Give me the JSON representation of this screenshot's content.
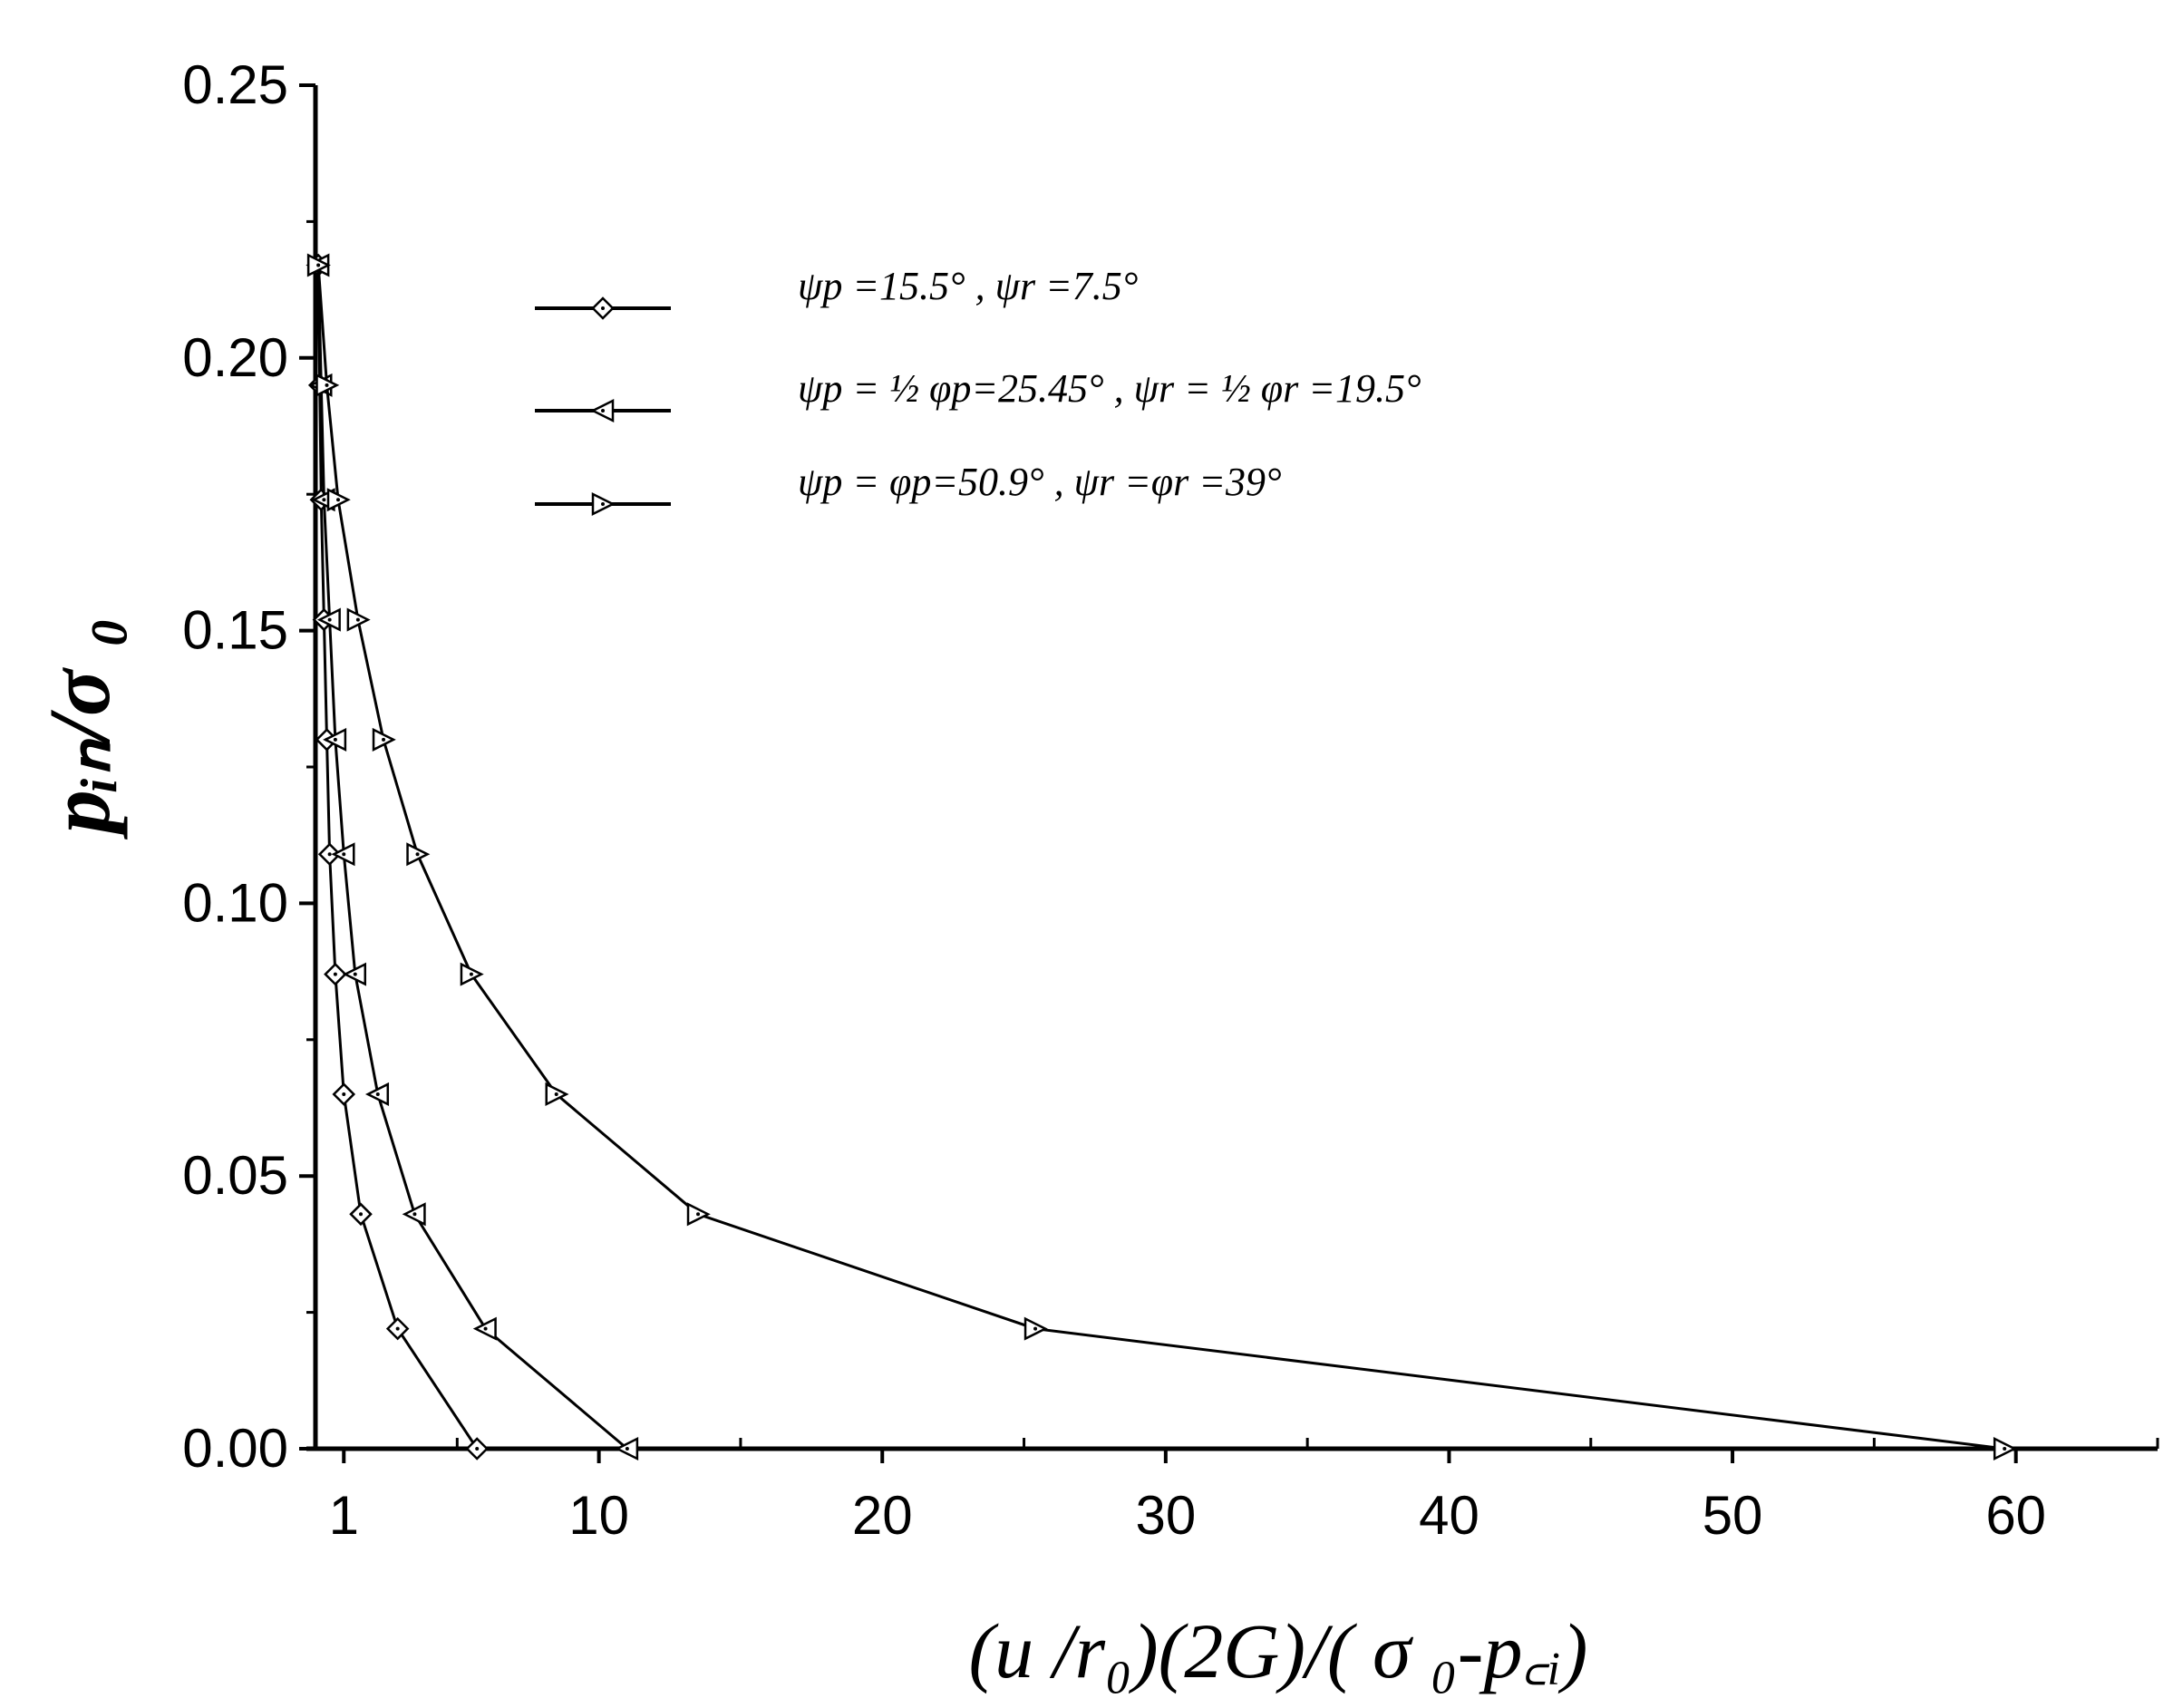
{
  "chart_data": {
    "type": "line",
    "xlabel": "(u /r₀)(2G)/( σ ₀-p꜀ᵢ)",
    "ylabel": "pᵢₙ/σ ₀",
    "xlim": [
      0,
      65
    ],
    "ylim": [
      0,
      0.25
    ],
    "x_ticks": [
      {
        "value": 1,
        "label": "1"
      },
      {
        "value": 10,
        "label": "10"
      },
      {
        "value": 20,
        "label": "20"
      },
      {
        "value": 30,
        "label": "30"
      },
      {
        "value": 40,
        "label": "40"
      },
      {
        "value": 50,
        "label": "50"
      },
      {
        "value": 60,
        "label": "60"
      }
    ],
    "y_ticks": [
      {
        "value": 0.0,
        "label": "0.00"
      },
      {
        "value": 0.05,
        "label": "0.05"
      },
      {
        "value": 0.1,
        "label": "0.10"
      },
      {
        "value": 0.15,
        "label": "0.15"
      },
      {
        "value": 0.2,
        "label": "0.20"
      },
      {
        "value": 0.25,
        "label": "0.25"
      }
    ],
    "legend_position": "top-right",
    "grid": false,
    "series": [
      {
        "name": "ψp =15.5° ,            ψr  =7.5°",
        "marker": "diamond",
        "points": [
          [
            0.1,
            0.217
          ],
          [
            0.15,
            0.195
          ],
          [
            0.2,
            0.174
          ],
          [
            0.3,
            0.152
          ],
          [
            0.4,
            0.13
          ],
          [
            0.5,
            0.109
          ],
          [
            0.7,
            0.087
          ],
          [
            1.0,
            0.065
          ],
          [
            1.6,
            0.043
          ],
          [
            2.9,
            0.022
          ],
          [
            5.7,
            0.0
          ]
        ]
      },
      {
        "name": "ψp = ½ φp=25.45° ,   ψr = ½ φr =19.5°",
        "marker": "triangle-left",
        "points": [
          [
            0.1,
            0.217
          ],
          [
            0.2,
            0.195
          ],
          [
            0.3,
            0.174
          ],
          [
            0.5,
            0.152
          ],
          [
            0.7,
            0.13
          ],
          [
            1.0,
            0.109
          ],
          [
            1.4,
            0.087
          ],
          [
            2.2,
            0.065
          ],
          [
            3.5,
            0.043
          ],
          [
            6.0,
            0.022
          ],
          [
            11.0,
            0.0
          ]
        ]
      },
      {
        "name": "ψp = φp=50.9° ,      ψr  =φr =39°",
        "marker": "triangle-right",
        "points": [
          [
            0.1,
            0.217
          ],
          [
            0.4,
            0.195
          ],
          [
            0.8,
            0.174
          ],
          [
            1.5,
            0.152
          ],
          [
            2.4,
            0.13
          ],
          [
            3.6,
            0.109
          ],
          [
            5.5,
            0.087
          ],
          [
            8.5,
            0.065
          ],
          [
            13.5,
            0.043
          ],
          [
            25.4,
            0.022
          ],
          [
            59.6,
            0.0
          ]
        ]
      }
    ]
  }
}
